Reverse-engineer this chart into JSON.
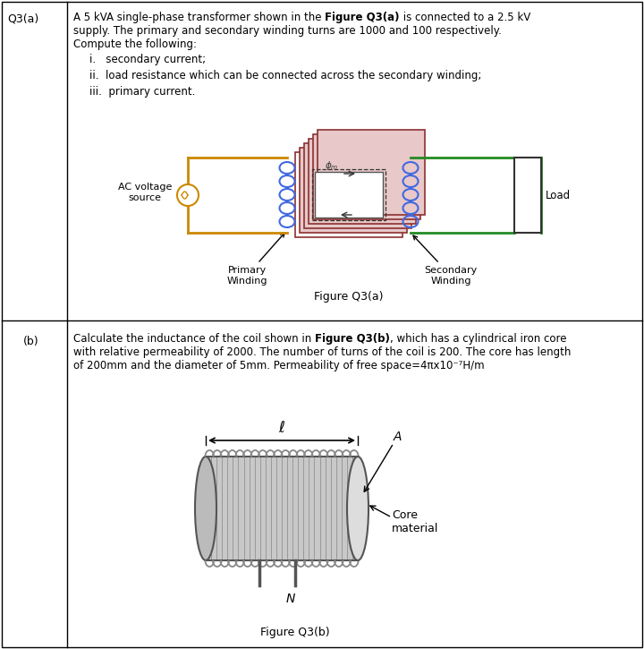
{
  "fig_width": 7.2,
  "fig_height": 7.25,
  "dpi": 100,
  "bg_color": "#ffffff",
  "border_color": "#000000",
  "part_a": {
    "label": "Q3(a)",
    "figure_caption": "Figure Q3(a)"
  },
  "part_b": {
    "label": "(b)",
    "figure_caption": "Figure Q3(b)"
  },
  "text_a_line1_normal1": "A 5 kVA single-phase transformer shown in the ",
  "text_a_line1_bold": "Figure Q3(a)",
  "text_a_line1_normal2": " is connected to a 2.5 kV",
  "text_a_line2": "supply. The primary and secondary winding turns are 1000 and 100 respectively.",
  "text_a_line3": "Compute the following:",
  "text_a_item1": "i.   secondary current;",
  "text_a_item2": "ii.  load resistance which can be connected across the secondary winding;",
  "text_a_item3": "iii.  primary current.",
  "text_b_line1_normal1": "Calculate the inductance of the coil shown in ",
  "text_b_line1_bold": "Figure Q3(b)",
  "text_b_line1_normal2": ", which has a cylindrical iron core",
  "text_b_line2": "with relative permeability of 2000. The number of turns of the coil is 200. The core has length",
  "text_b_line3": "of 200mm and the diameter of 5mm. Permeability of free space=4πx10⁻⁷H/m",
  "wire_color_primary": "#CC8800",
  "wire_color_secondary": "#228B22",
  "core_color": "#8B3030",
  "winding_color": "#4169E1",
  "load_color": "#333333",
  "coil_color": "#888888",
  "fs_main": 8.5,
  "fs_caption": 9.0
}
